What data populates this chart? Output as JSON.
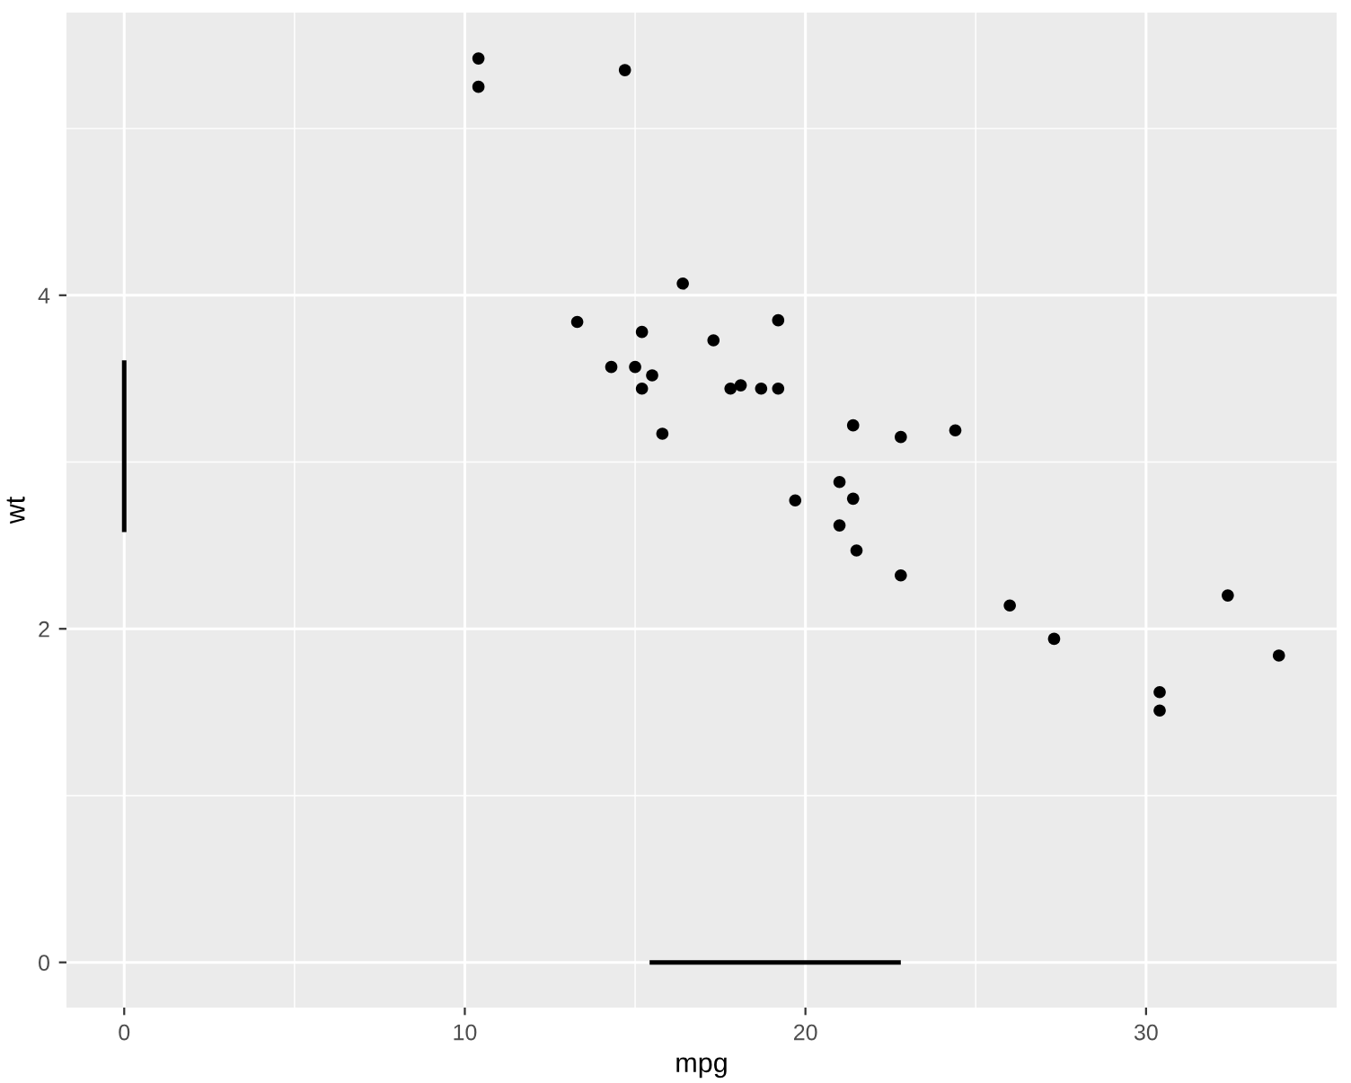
{
  "chart_data": {
    "type": "scatter",
    "xlabel": "mpg",
    "ylabel": "wt",
    "xlim": [
      -1.695,
      35.595
    ],
    "ylim": [
      -0.271,
      5.695
    ],
    "xticks": [
      0,
      10,
      20,
      30
    ],
    "yticks": [
      0,
      2,
      4
    ],
    "grid": true,
    "legend": false,
    "x": [
      21,
      21,
      22.8,
      21.4,
      18.7,
      18.1,
      14.3,
      24.4,
      22.8,
      19.2,
      17.8,
      16.4,
      17.3,
      15.2,
      10.4,
      10.4,
      14.7,
      32.4,
      30.4,
      33.9,
      21.5,
      15.5,
      15.2,
      13.3,
      19.2,
      27.3,
      26,
      30.4,
      15.8,
      19.7,
      15,
      21.4
    ],
    "series": [
      {
        "color": "#000000",
        "marker": "circle",
        "values": [
          2.62,
          2.88,
          2.32,
          3.22,
          3.44,
          3.46,
          3.57,
          3.19,
          3.15,
          3.44,
          3.44,
          4.07,
          3.73,
          3.78,
          5.25,
          5.42,
          5.35,
          2.2,
          1.62,
          1.84,
          2.47,
          3.52,
          3.44,
          3.84,
          3.85,
          1.94,
          2.14,
          1.51,
          3.17,
          2.77,
          3.57,
          2.78
        ]
      },
      {
        "type": "line",
        "color": "#000000",
        "x": [
          15.425,
          22.8
        ],
        "values": [
          0,
          0
        ]
      },
      {
        "type": "line",
        "color": "#000000",
        "x": [
          0,
          0
        ],
        "values": [
          2.58,
          3.61
        ]
      }
    ]
  }
}
